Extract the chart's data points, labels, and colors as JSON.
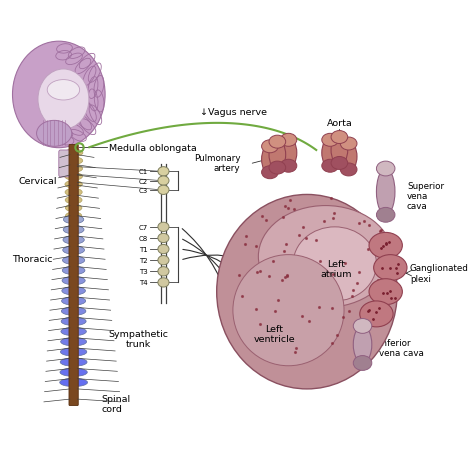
{
  "background_color": "#ffffff",
  "brain_color": "#c8a0c8",
  "brain_outline_color": "#a070a0",
  "spine_brown_color": "#7a4820",
  "spine_cream_color": "#d4c080",
  "spine_blue_start": "#8090b8",
  "spine_blue_end": "#4060a8",
  "vagus_nerve_color": "#70aa40",
  "label_color": "#000000",
  "heart_outer_color": "#c09098",
  "heart_inner_color": "#b07880",
  "heart_atrium_color": "#d0a0a8",
  "heart_ventricle_color": "#c090a0",
  "vessel_color": "#c07870",
  "vessel_edge_color": "#904050",
  "ganglion_color": "#c07880",
  "dot_color": "#903040",
  "cervical_labels": [
    "C1",
    "C2",
    "C3"
  ],
  "thoracic_labels": [
    "C7",
    "C8",
    "T1",
    "T2",
    "T3",
    "T4"
  ]
}
